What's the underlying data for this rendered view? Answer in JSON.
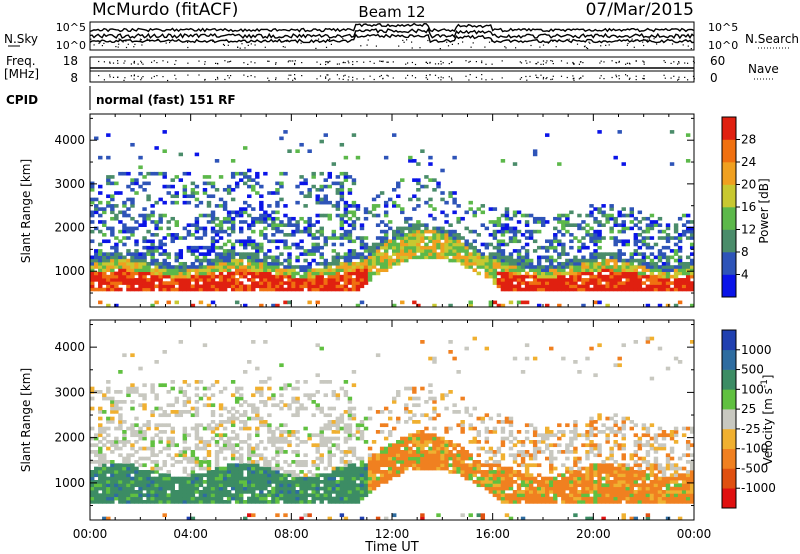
{
  "header": {
    "station": "McMurdo (fitACF)",
    "beam": "Beam 12",
    "date": "07/Mar/2015"
  },
  "top_strips": {
    "nsky_label": "N.Sky",
    "nsearch_label": "N.Search",
    "nsky_ticks": [
      "10^5",
      "10^0"
    ],
    "nsearch_ticks": [
      "10^5",
      "10^0"
    ],
    "freq_label_1": "Freq.",
    "freq_label_2": "[MHz]",
    "freq_ticks": [
      "18",
      "8"
    ],
    "nave_label": "Nave",
    "nave_ticks": [
      "60",
      "0"
    ],
    "cpid_label": "CPID",
    "cpid_value": "normal (fast) 151 RF"
  },
  "chart_data": [
    {
      "type": "heatmap",
      "name": "power",
      "x_ticks": [
        "00:00",
        "04:00",
        "08:00",
        "12:00",
        "16:00",
        "20:00",
        "00:00"
      ],
      "xlim_hours": [
        0,
        24
      ],
      "ylabel": "Slant Range [km]",
      "y_ticks": [
        1000,
        2000,
        3000,
        4000
      ],
      "ylim_km": [
        180,
        4600
      ],
      "colorbar": {
        "label": "Power [dB]",
        "ticks": [
          4,
          8,
          12,
          16,
          20,
          24,
          28
        ],
        "colors": [
          "#0a14e8",
          "#2e54b8",
          "#4a8c6a",
          "#5cb84a",
          "#c8c830",
          "#f0a020",
          "#f07010",
          "#e02010"
        ]
      },
      "echo_bands": [
        {
          "range_km": [
            500,
            1400
          ],
          "dominant": "20-30 dB",
          "start_h": 0.1,
          "end_h": 24
        },
        {
          "range_km": [
            1400,
            2500
          ],
          "dominant": "8-16 dB",
          "start_h": 0.1,
          "end_h": 24
        },
        {
          "range_km": [
            2500,
            3300
          ],
          "dominant": "4-12 dB",
          "start_h": 0.1,
          "end_h": 10.5
        }
      ]
    },
    {
      "type": "heatmap",
      "name": "velocity",
      "x_ticks": [
        "00:00",
        "04:00",
        "08:00",
        "12:00",
        "16:00",
        "20:00",
        "00:00"
      ],
      "xlim_hours": [
        0,
        24
      ],
      "xlabel": "Time UT",
      "ylabel": "Slant Range [km]",
      "y_ticks": [
        1000,
        2000,
        3000,
        4000
      ],
      "ylim_km": [
        180,
        4600
      ],
      "colorbar": {
        "label": "Velocity [m s^-1]",
        "ticks": [
          "1000",
          "500",
          "100",
          "25",
          "-25",
          "-100",
          "-500",
          "-1000"
        ],
        "colors": [
          "#2040b0",
          "#2e6ca0",
          "#3c8c64",
          "#60c040",
          "#c8c8c0",
          "#f0b030",
          "#f08020",
          "#e05010",
          "#e01010"
        ]
      },
      "echo_bands": [
        {
          "range_km": [
            500,
            1400
          ],
          "dominant_before_12h": "+100 to +500",
          "dominant_after_12h": "-100 to -500"
        },
        {
          "range_km": [
            1700,
            3300
          ],
          "dominant": "-25 to +25"
        }
      ]
    }
  ]
}
